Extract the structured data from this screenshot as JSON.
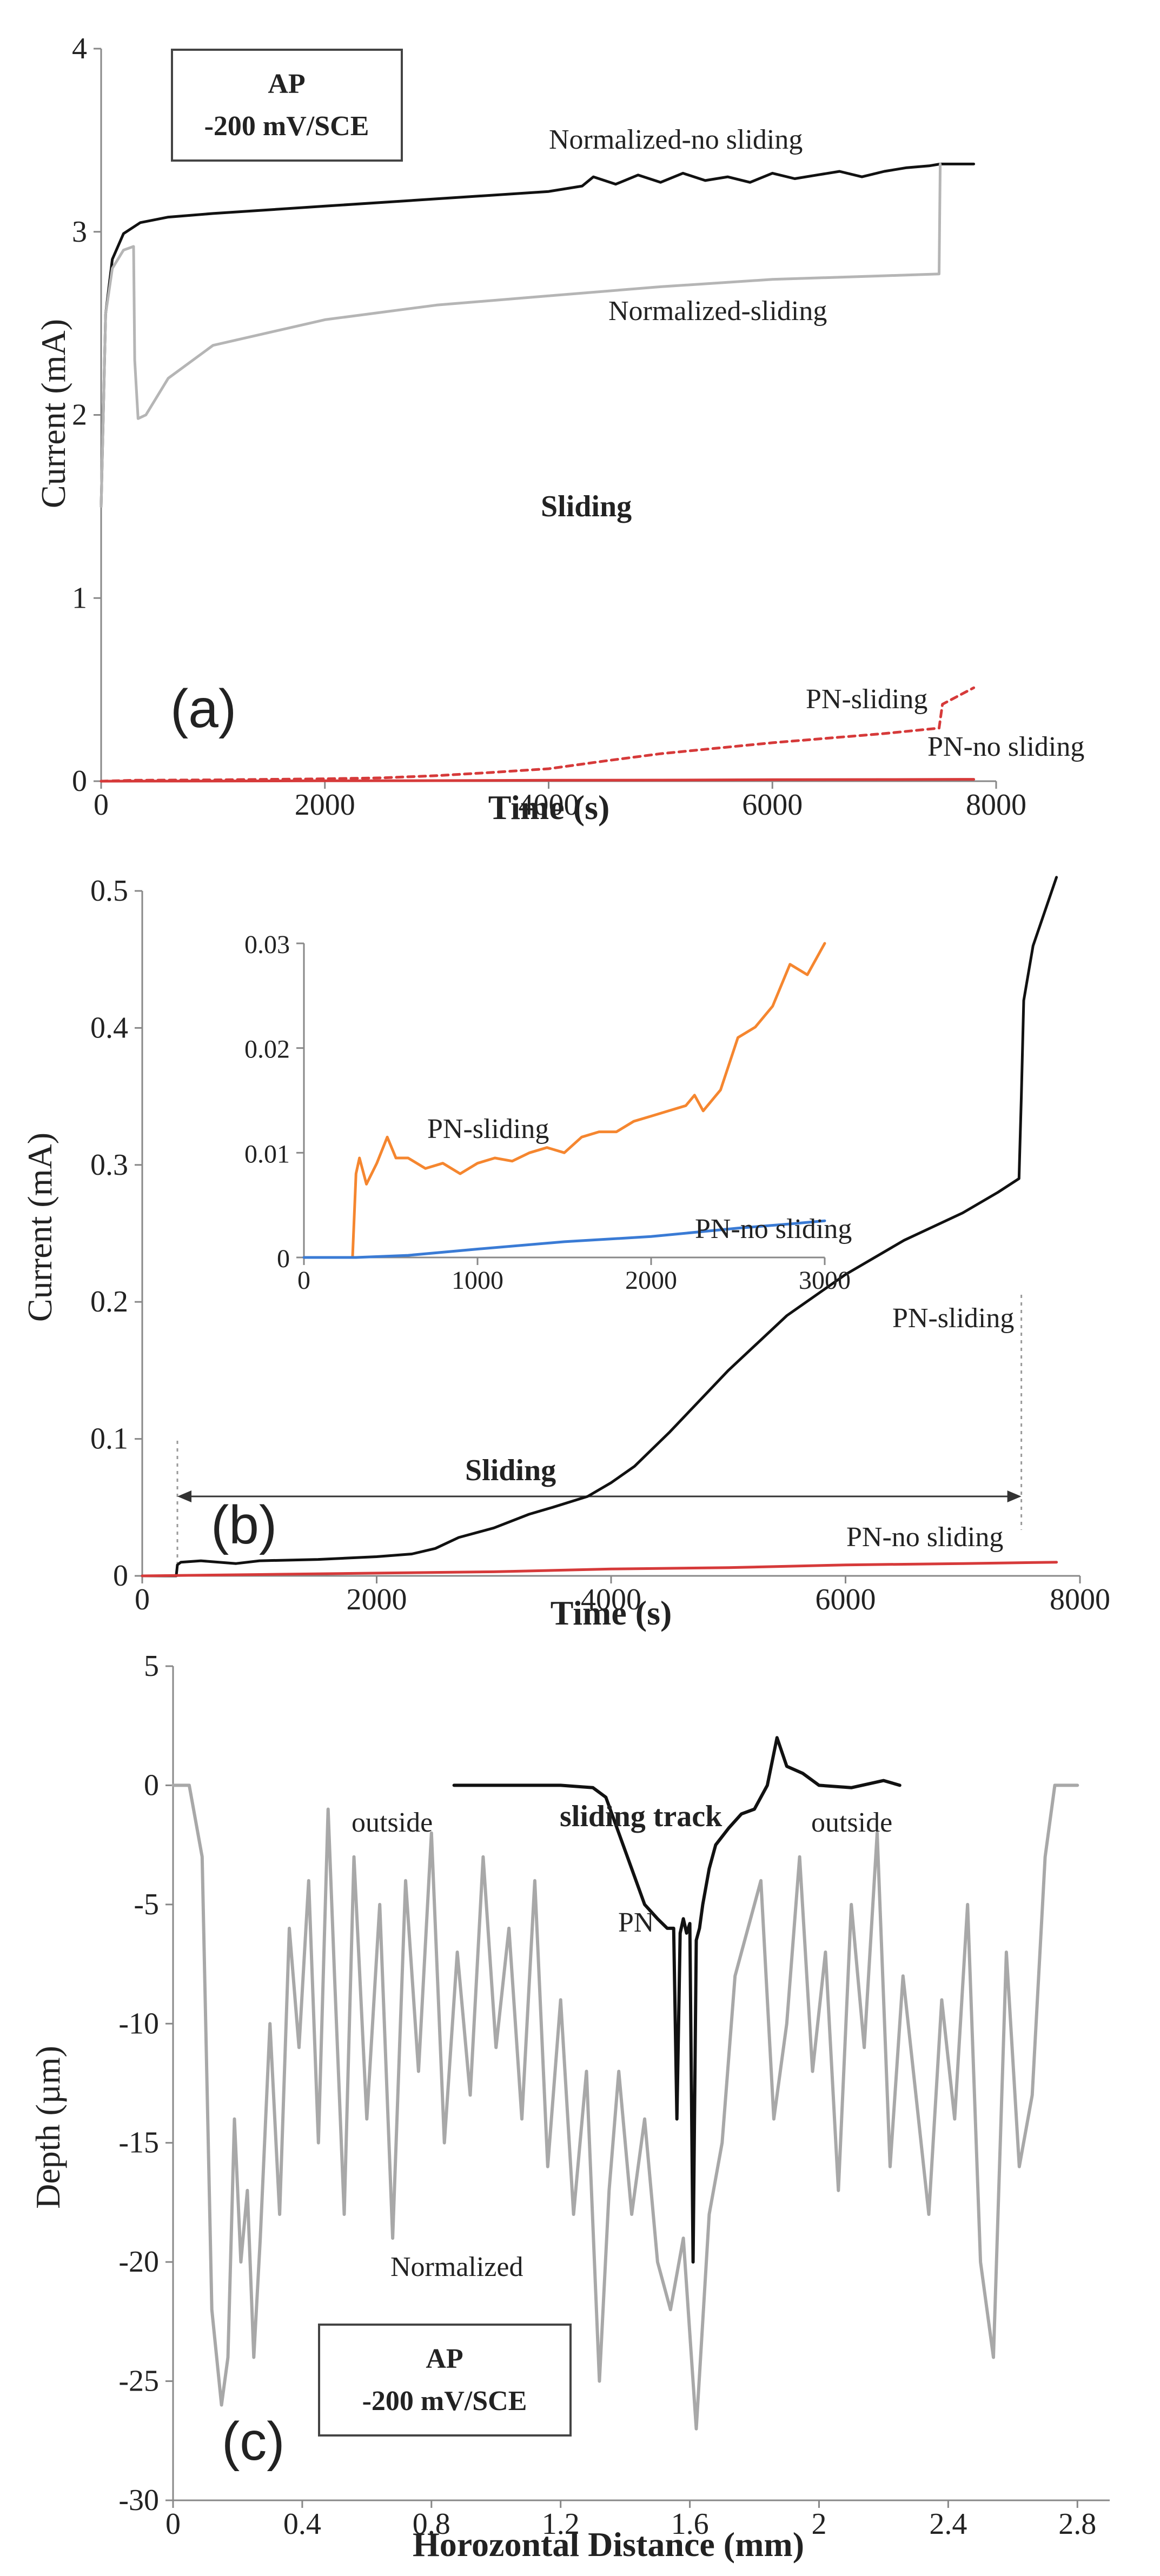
{
  "chart_data": [
    {
      "type": "line",
      "panel_label": "(a)",
      "box_label": [
        "AP",
        "-200 mV/SCE"
      ],
      "xlabel": "Time (s)",
      "ylabel": "Current (mA)",
      "xlim": [
        0,
        8000
      ],
      "ylim": [
        0,
        4
      ],
      "xticks": [
        0,
        2000,
        4000,
        6000,
        8000
      ],
      "yticks": [
        0,
        1,
        2,
        3,
        4
      ],
      "annotations": [
        "Normalized-no sliding",
        "Normalized-sliding",
        "Sliding",
        "PN-sliding",
        "PN-no sliding"
      ],
      "series": [
        {
          "name": "Normalized-no sliding",
          "color": "#111111",
          "dash": "",
          "x": [
            0,
            40,
            100,
            200,
            350,
            600,
            1000,
            2000,
            3000,
            4000,
            4300,
            4400,
            4600,
            4800,
            5000,
            5200,
            5400,
            5600,
            5800,
            6000,
            6200,
            6400,
            6600,
            6800,
            7000,
            7200,
            7400,
            7500,
            7600,
            7800
          ],
          "y": [
            1.5,
            2.55,
            2.85,
            2.99,
            3.05,
            3.08,
            3.1,
            3.14,
            3.18,
            3.22,
            3.25,
            3.3,
            3.26,
            3.31,
            3.27,
            3.32,
            3.28,
            3.3,
            3.27,
            3.32,
            3.29,
            3.31,
            3.33,
            3.3,
            3.33,
            3.35,
            3.36,
            3.37,
            3.37,
            3.37
          ]
        },
        {
          "name": "Normalized-sliding",
          "color": "#b5b5b5",
          "dash": "",
          "x": [
            0,
            40,
            100,
            200,
            290,
            300,
            330,
            400,
            600,
            1000,
            2000,
            3000,
            4000,
            5000,
            6000,
            7000,
            7490,
            7500
          ],
          "y": [
            1.5,
            2.55,
            2.8,
            2.9,
            2.92,
            2.3,
            1.98,
            2.0,
            2.2,
            2.38,
            2.52,
            2.6,
            2.65,
            2.7,
            2.74,
            2.76,
            2.77,
            3.37
          ]
        },
        {
          "name": "PN-sliding",
          "color": "#d63a3a",
          "dash": "12,9",
          "x": [
            0,
            300,
            1000,
            2000,
            2500,
            3000,
            3500,
            4000,
            4500,
            5000,
            5500,
            6000,
            6500,
            7000,
            7490,
            7520,
            7800
          ],
          "y": [
            0,
            0.005,
            0.007,
            0.013,
            0.018,
            0.03,
            0.048,
            0.068,
            0.11,
            0.15,
            0.18,
            0.21,
            0.235,
            0.26,
            0.29,
            0.42,
            0.51
          ]
        },
        {
          "name": "PN-no sliding",
          "color": "#d63a3a",
          "dash": "",
          "x": [
            0,
            1000,
            2000,
            3000,
            4000,
            5000,
            6000,
            7000,
            7800
          ],
          "y": [
            0,
            0.001,
            0.002,
            0.003,
            0.005,
            0.006,
            0.008,
            0.009,
            0.01
          ]
        }
      ]
    },
    {
      "type": "line",
      "panel_label": "(b)",
      "xlabel": "Time (s)",
      "ylabel": "Current (mA)",
      "xlim": [
        0,
        8000
      ],
      "ylim": [
        0,
        0.5
      ],
      "xticks": [
        0,
        2000,
        4000,
        6000,
        8000
      ],
      "yticks": [
        0,
        0.1,
        0.2,
        0.3,
        0.4,
        0.5
      ],
      "annotations": [
        "PN-sliding",
        "Sliding",
        "PN-no sliding"
      ],
      "sliding_interval": [
        300,
        7500
      ],
      "series": [
        {
          "name": "PN-sliding",
          "color": "#111111",
          "dash": "",
          "x": [
            0,
            290,
            300,
            330,
            500,
            800,
            1000,
            1500,
            2000,
            2300,
            2500,
            2700,
            3000,
            3300,
            3500,
            3800,
            4000,
            4200,
            4500,
            5000,
            5500,
            6000,
            6500,
            7000,
            7300,
            7480,
            7500,
            7520,
            7600,
            7800
          ],
          "y": [
            0,
            0,
            0.008,
            0.01,
            0.011,
            0.009,
            0.011,
            0.012,
            0.014,
            0.016,
            0.02,
            0.028,
            0.035,
            0.045,
            0.05,
            0.058,
            0.068,
            0.08,
            0.105,
            0.15,
            0.19,
            0.22,
            0.245,
            0.265,
            0.28,
            0.29,
            0.35,
            0.42,
            0.46,
            0.51
          ]
        },
        {
          "name": "PN-no sliding",
          "color": "#d63a3a",
          "dash": "",
          "x": [
            0,
            1000,
            2000,
            3000,
            4000,
            5000,
            6000,
            7000,
            7800
          ],
          "y": [
            0,
            0.001,
            0.002,
            0.003,
            0.005,
            0.006,
            0.008,
            0.009,
            0.01
          ]
        }
      ]
    },
    {
      "type": "line",
      "role": "inset",
      "xlim": [
        0,
        3000
      ],
      "ylim": [
        0,
        0.03
      ],
      "xticks": [
        0,
        1000,
        2000,
        3000
      ],
      "yticks": [
        0,
        0.01,
        0.02,
        0.03
      ],
      "annotations": [
        "PN-sliding",
        "PN-no sliding"
      ],
      "series": [
        {
          "name": "PN-sliding",
          "color": "#f5862f",
          "dash": "",
          "x": [
            0,
            280,
            300,
            320,
            360,
            420,
            480,
            530,
            600,
            700,
            800,
            900,
            1000,
            1100,
            1200,
            1300,
            1400,
            1500,
            1600,
            1700,
            1800,
            1900,
            2000,
            2100,
            2200,
            2250,
            2300,
            2400,
            2500,
            2600,
            2700,
            2800,
            2900,
            3000
          ],
          "y": [
            0,
            0,
            0.008,
            0.0095,
            0.007,
            0.009,
            0.0115,
            0.0095,
            0.0095,
            0.0085,
            0.009,
            0.008,
            0.009,
            0.0095,
            0.0092,
            0.01,
            0.0105,
            0.01,
            0.0115,
            0.012,
            0.012,
            0.013,
            0.0135,
            0.014,
            0.0145,
            0.0155,
            0.014,
            0.016,
            0.021,
            0.022,
            0.024,
            0.028,
            0.027,
            0.03
          ]
        },
        {
          "name": "PN-no sliding",
          "color": "#3a7bd5",
          "dash": "",
          "x": [
            0,
            300,
            600,
            1000,
            1500,
            2000,
            2500,
            2800,
            3000
          ],
          "y": [
            0,
            0,
            0.0002,
            0.0008,
            0.0015,
            0.002,
            0.0028,
            0.0032,
            0.0035
          ]
        }
      ]
    },
    {
      "type": "line",
      "panel_label": "(c)",
      "box_label": [
        "AP",
        "-200 mV/SCE"
      ],
      "xlabel": "Horozontal Distance (mm)",
      "ylabel": "Depth (µm)",
      "xlim": [
        0,
        2.9
      ],
      "ylim": [
        -30,
        5
      ],
      "xticks": [
        0,
        0.4,
        0.8,
        1.2,
        1.6,
        2,
        2.4,
        2.8
      ],
      "yticks": [
        -30,
        -25,
        -20,
        -15,
        -10,
        -5,
        0,
        5
      ],
      "annotations": [
        "outside",
        "sliding track",
        "outside",
        "PN",
        "Normalized"
      ],
      "series": [
        {
          "name": "Normalized",
          "color": "#a8a8a8",
          "dash": "",
          "x": [
            0,
            0.05,
            0.09,
            0.12,
            0.15,
            0.17,
            0.19,
            0.21,
            0.23,
            0.25,
            0.27,
            0.3,
            0.33,
            0.36,
            0.39,
            0.42,
            0.45,
            0.48,
            0.5,
            0.53,
            0.56,
            0.6,
            0.64,
            0.68,
            0.72,
            0.76,
            0.8,
            0.84,
            0.88,
            0.92,
            0.96,
            1.0,
            1.04,
            1.08,
            1.12,
            1.16,
            1.2,
            1.24,
            1.28,
            1.32,
            1.35,
            1.38,
            1.42,
            1.46,
            1.5,
            1.54,
            1.58,
            1.62,
            1.66,
            1.7,
            1.74,
            1.78,
            1.82,
            1.86,
            1.9,
            1.94,
            1.98,
            2.02,
            2.06,
            2.1,
            2.14,
            2.18,
            2.22,
            2.26,
            2.3,
            2.34,
            2.38,
            2.42,
            2.46,
            2.5,
            2.54,
            2.58,
            2.62,
            2.66,
            2.7,
            2.73,
            2.76,
            2.8
          ],
          "y": [
            0,
            0,
            -3,
            -22,
            -26,
            -24,
            -14,
            -20,
            -17,
            -24,
            -19,
            -10,
            -18,
            -6,
            -11,
            -4,
            -15,
            -1,
            -8,
            -18,
            -3,
            -14,
            -5,
            -19,
            -4,
            -12,
            -2,
            -15,
            -7,
            -13,
            -3,
            -11,
            -6,
            -14,
            -4,
            -16,
            -9,
            -18,
            -12,
            -25,
            -17,
            -12,
            -18,
            -14,
            -20,
            -22,
            -19,
            -27,
            -18,
            -15,
            -8,
            -6,
            -4,
            -14,
            -10,
            -3,
            -12,
            -7,
            -17,
            -5,
            -11,
            -2,
            -16,
            -8,
            -13,
            -18,
            -9,
            -14,
            -5,
            -20,
            -24,
            -7,
            -16,
            -13,
            -3,
            0,
            0,
            0
          ]
        },
        {
          "name": "PN",
          "color": "#111111",
          "dash": "",
          "x": [
            0.87,
            1.0,
            1.1,
            1.2,
            1.3,
            1.34,
            1.38,
            1.42,
            1.46,
            1.5,
            1.53,
            1.55,
            1.56,
            1.57,
            1.58,
            1.59,
            1.6,
            1.61,
            1.62,
            1.63,
            1.64,
            1.66,
            1.68,
            1.72,
            1.76,
            1.8,
            1.84,
            1.87,
            1.9,
            1.95,
            2.0,
            2.1,
            2.2,
            2.25
          ],
          "y": [
            0,
            0,
            0,
            0,
            -0.1,
            -0.5,
            -2,
            -3.5,
            -5,
            -5.6,
            -6,
            -6,
            -14,
            -6.2,
            -5.6,
            -6.2,
            -5.8,
            -20,
            -6.5,
            -6,
            -5,
            -3.5,
            -2.5,
            -1.8,
            -1.2,
            -1,
            0,
            2,
            0.8,
            0.5,
            0,
            -0.1,
            0.2,
            0
          ]
        }
      ]
    }
  ]
}
